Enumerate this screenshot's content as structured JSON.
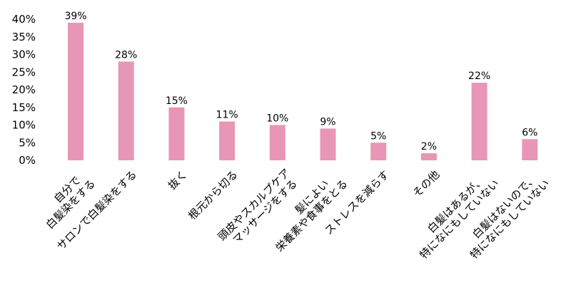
{
  "chart_data": {
    "type": "bar",
    "title": "",
    "xlabel": "",
    "ylabel": "",
    "ylim": [
      0,
      40
    ],
    "yticks": [
      "0%",
      "5%",
      "10%",
      "15%",
      "20%",
      "25%",
      "30%",
      "35%",
      "40%"
    ],
    "grid": false,
    "bar_color": "#E896B6",
    "categories": [
      [
        "自分で",
        "白髪染をする"
      ],
      [
        "サロンで白髪染をする"
      ],
      [
        "抜く"
      ],
      [
        "根元から切る"
      ],
      [
        "頭皮やスカルプケア",
        "マッサージをする"
      ],
      [
        "髪によい",
        "栄養素や食事をとる"
      ],
      [
        "ストレスを減らす"
      ],
      [
        "その他"
      ],
      [
        "白髪はあるが、",
        "特になにもしていない"
      ],
      [
        "白髪はないので、",
        "特になにもしていない"
      ]
    ],
    "values": [
      39,
      28,
      15,
      11,
      10,
      9,
      5,
      2,
      22,
      6
    ],
    "data_labels": [
      "39%",
      "28%",
      "15%",
      "11%",
      "10%",
      "9%",
      "5%",
      "2%",
      "22%",
      "6%"
    ]
  }
}
